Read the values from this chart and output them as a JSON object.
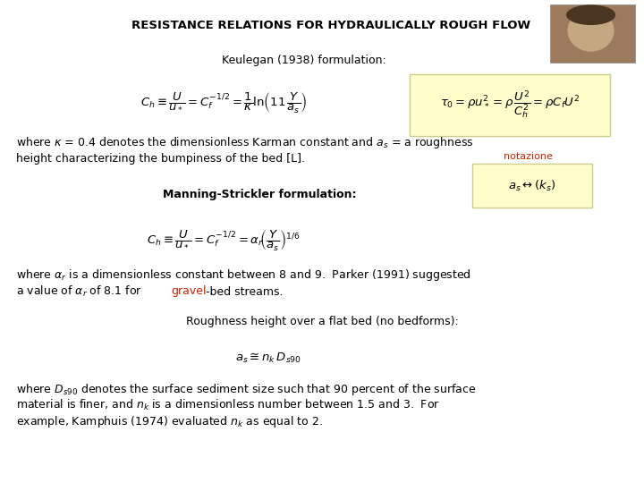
{
  "title": "RESISTANCE RELATIONS FOR HYDRAULICALLY ROUGH FLOW",
  "title_fontsize": 9.5,
  "bg_color": "#ffffff",
  "keulegan_label": "Keulegan (1938) formulation:",
  "keulegan_formula": "$C_h \\equiv \\dfrac{U}{u_*} = C_f^{-1/2} = \\dfrac{1}{\\kappa}\\ln\\!\\left(11\\,\\dfrac{Y}{a_s}\\right)$",
  "keulegan_formula2": "$\\tau_0 = \\rho u_*^2 = \\rho\\,\\dfrac{U^2}{C_h^2} = \\rho C_f U^2$",
  "text1_line1": "where $\\kappa$ = 0.4 denotes the dimensionless Karman constant and $a_s$ = a roughness",
  "text1_line2": "height characterizing the bumpiness of the bed [L].",
  "notazione_label": "notazione",
  "notazione_formula": "$a_s \\leftrightarrow (k_s)$",
  "manning_label": "Manning-Strickler formulation:",
  "manning_formula": "$C_h \\equiv \\dfrac{U}{u_*} = C_f^{-1/2} = \\alpha_r\\!\\left(\\dfrac{Y}{a_s}\\right)^{1/6}$",
  "text2_line1": "where $\\alpha_r$ is a dimensionless constant between 8 and 9.  Parker (1991) suggested",
  "text2_line2_a": "a value of $\\alpha_r$ of 8.1 for ",
  "text2_line2_b": "gravel",
  "text2_line2_c": "-bed streams.",
  "roughness_label": "Roughness height over a flat bed (no bedforms):",
  "roughness_formula": "$a_s \\cong n_k\\,D_{s90}$",
  "text3_line1": "where $D_{s90}$ denotes the surface sediment size such that 90 percent of the surface",
  "text3_line2": "material is finer, and $n_k$ is a dimensionless number between 1.5 and 3.  For",
  "text3_line3": "example, Kamphuis (1974) evaluated $n_k$ as equal to 2.",
  "yellow_bg": "#ffffcc",
  "yellow_border": "#cccc88",
  "notazione_bg": "#ffffcc",
  "notazione_border": "#cccc88",
  "red_color": "#cc2200",
  "black_color": "#000000",
  "body_fontsize": 9.0,
  "formula_fontsize": 9.5,
  "photo_color1": "#9b7a5e",
  "photo_color2": "#c4a882"
}
